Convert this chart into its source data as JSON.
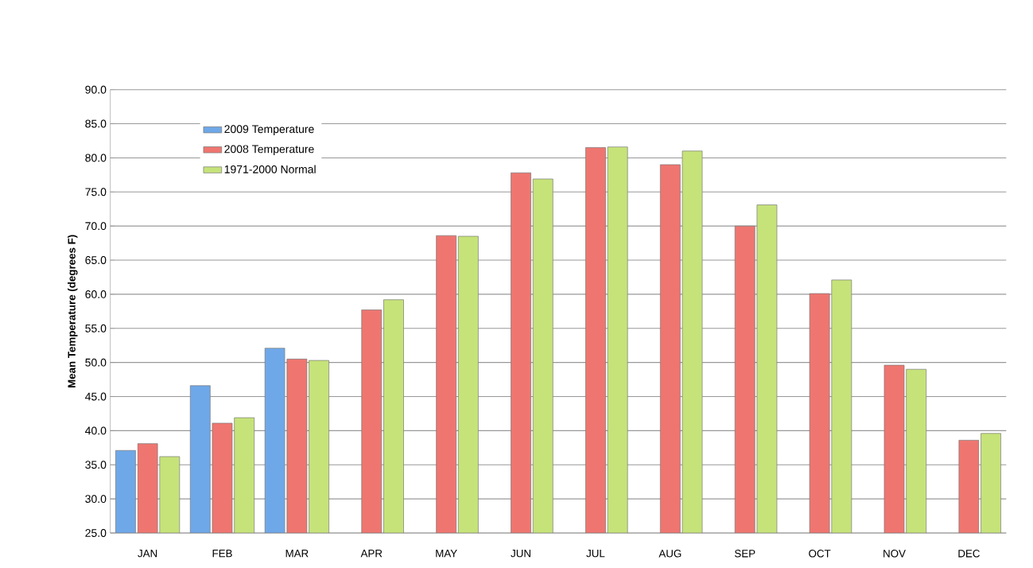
{
  "chart_data": {
    "type": "bar",
    "ylabel": "Mean Temperature (degrees F)",
    "categories": [
      "JAN",
      "FEB",
      "MAR",
      "APR",
      "MAY",
      "JUN",
      "JUL",
      "AUG",
      "SEP",
      "OCT",
      "NOV",
      "DEC"
    ],
    "series": [
      {
        "name": "2009 Temperature",
        "color": "#6fa8e8",
        "values": [
          37.1,
          46.6,
          52.1,
          null,
          null,
          null,
          null,
          null,
          null,
          null,
          null,
          null
        ]
      },
      {
        "name": "2008 Temperature",
        "color": "#ef7670",
        "values": [
          38.1,
          41.1,
          50.5,
          57.7,
          68.6,
          77.8,
          81.5,
          79.0,
          70.0,
          60.1,
          49.6,
          38.6
        ]
      },
      {
        "name": "1971-2000 Normal",
        "color": "#c6e37a",
        "values": [
          36.2,
          41.9,
          50.3,
          59.2,
          68.5,
          76.9,
          81.6,
          81.0,
          73.1,
          62.1,
          49.0,
          39.6
        ]
      }
    ],
    "ylim": [
      25,
      90
    ],
    "yticks": [
      {
        "value": 25,
        "label": "25.0"
      },
      {
        "value": 30,
        "label": "30.0"
      },
      {
        "value": 35,
        "label": "35.0"
      },
      {
        "value": 40,
        "label": "40.0"
      },
      {
        "value": 45,
        "label": "45.0"
      },
      {
        "value": 50,
        "label": "50.0"
      },
      {
        "value": 55,
        "label": "55.0"
      },
      {
        "value": 60,
        "label": "60.0"
      },
      {
        "value": 65,
        "label": "65.0"
      },
      {
        "value": 70,
        "label": "70.0"
      },
      {
        "value": 75,
        "label": "75.0"
      },
      {
        "value": 80,
        "label": "80.0"
      },
      {
        "value": 85,
        "label": "85.0"
      },
      {
        "value": 90,
        "label": "90.0"
      }
    ],
    "grid": "y",
    "legend": "top left"
  }
}
